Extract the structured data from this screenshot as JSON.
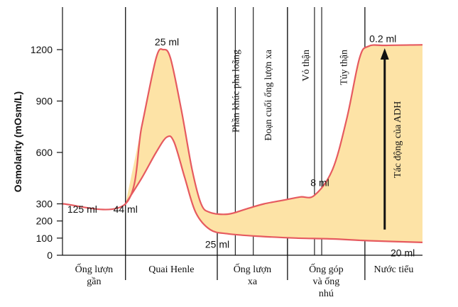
{
  "chart_data": {
    "type": "line",
    "ylabel": "Osmolarity  (mOsm/L)",
    "ylim": [
      0,
      1400
    ],
    "yticks": [
      0,
      100,
      200,
      300,
      600,
      900,
      1200
    ],
    "xlim": [
      0,
      10
    ],
    "segments": [
      {
        "label_lines": [
          "Ống lượn",
          "gần"
        ],
        "start": 0,
        "end": 1.75
      },
      {
        "label_lines": [
          "Quai Henle"
        ],
        "start": 1.75,
        "end": 4.3
      },
      {
        "label_lines": [
          "Ống lượn",
          "xa"
        ],
        "start": 4.3,
        "end": 6.25
      },
      {
        "label_lines": [
          "Ống góp",
          "và ống",
          "nhú"
        ],
        "start": 6.25,
        "end": 8.4
      },
      {
        "label_lines": [
          "Nước tiểu"
        ],
        "start": 8.4,
        "end": 10
      }
    ],
    "vertical_labels": [
      {
        "text": "Phần khúc pha loãng",
        "x": 4.8
      },
      {
        "text": "Đoạn cuối ống lượn xa",
        "x": 5.7
      },
      {
        "text": "Vỏ thận",
        "x": 6.75
      },
      {
        "text": "Tủy thận",
        "x": 7.8
      }
    ],
    "series": [
      {
        "points": [
          [
            0,
            300
          ],
          [
            1.75,
            300
          ],
          [
            2.2,
            750
          ],
          [
            2.6,
            1150
          ],
          [
            2.8,
            1200
          ],
          [
            3.0,
            1150
          ],
          [
            3.3,
            850
          ],
          [
            3.6,
            500
          ],
          [
            3.85,
            300
          ],
          [
            4.1,
            250
          ],
          [
            4.6,
            240
          ],
          [
            5.1,
            270
          ],
          [
            5.6,
            300
          ],
          [
            6.1,
            320
          ],
          [
            6.6,
            340
          ],
          [
            7.0,
            350
          ],
          [
            7.5,
            500
          ],
          [
            7.9,
            800
          ],
          [
            8.25,
            1150
          ],
          [
            8.5,
            1220
          ],
          [
            9.0,
            1225
          ],
          [
            10,
            1228
          ]
        ]
      },
      {
        "points": [
          [
            1.75,
            300
          ],
          [
            2.2,
            450
          ],
          [
            2.6,
            600
          ],
          [
            2.9,
            690
          ],
          [
            3.1,
            660
          ],
          [
            3.4,
            450
          ],
          [
            3.7,
            250
          ],
          [
            4.1,
            150
          ],
          [
            4.6,
            125
          ],
          [
            5.5,
            110
          ],
          [
            6.5,
            100
          ],
          [
            7.5,
            95
          ],
          [
            8.5,
            85
          ],
          [
            10,
            75
          ]
        ]
      }
    ],
    "volume_labels": [
      {
        "text": "125 ml",
        "x": 0.55,
        "y": 270
      },
      {
        "text": "44 ml",
        "x": 1.75,
        "y": 270
      },
      {
        "text": "25 ml",
        "x": 2.9,
        "y": 1245
      },
      {
        "text": "25 ml",
        "x": 4.3,
        "y": 65
      },
      {
        "text": "8 ml",
        "x": 7.15,
        "y": 425
      },
      {
        "text": "0.2 ml",
        "x": 8.9,
        "y": 1265
      },
      {
        "text": "20 ml",
        "x": 9.45,
        "y": 15
      }
    ],
    "arrow": {
      "label": "Tác động của ADH",
      "x": 8.95,
      "y_from": 150,
      "y_to": 1200
    }
  }
}
